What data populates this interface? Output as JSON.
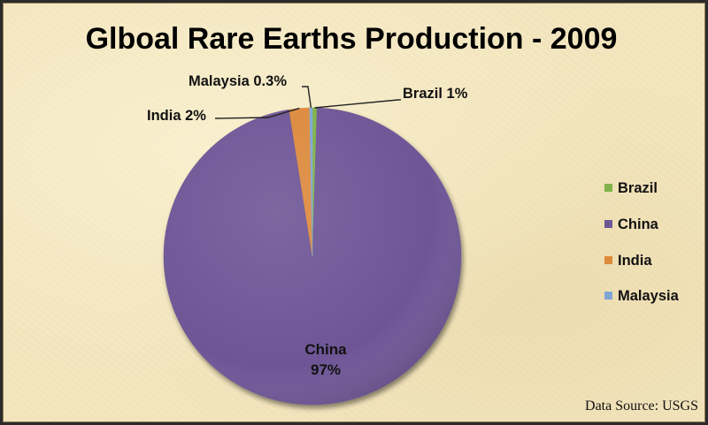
{
  "chart_data": {
    "type": "pie",
    "title": "Glboal Rare Earths Production - 2009",
    "slices": [
      {
        "name": "Brazil",
        "value": 0.5,
        "label": "Brazil 1%",
        "color": "#7fb24a"
      },
      {
        "name": "China",
        "value": 97,
        "label": "China",
        "pct_label": "97%",
        "color": "#6e5796"
      },
      {
        "name": "India",
        "value": 2.2,
        "label": "India 2%",
        "color": "#dc8a3c"
      },
      {
        "name": "Malaysia",
        "value": 0.3,
        "label": "Malaysia 0.3%",
        "color": "#7ea6d4"
      }
    ],
    "legend": [
      "Brazil",
      "China",
      "India",
      "Malaysia"
    ],
    "legend_position": "right",
    "source": "Data Source: USGS"
  }
}
